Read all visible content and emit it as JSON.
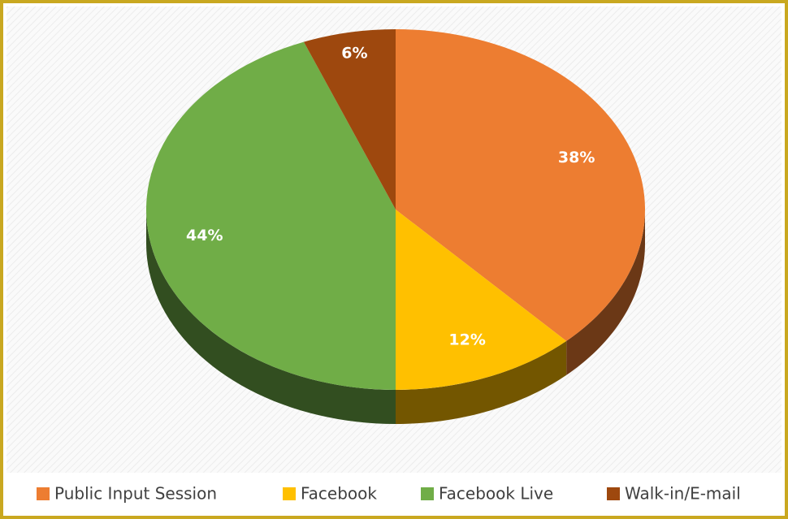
{
  "chart_data": {
    "type": "pie",
    "categories": [
      "Public Input Session",
      "Facebook",
      "Facebook Live",
      "Walk-in/E-mail"
    ],
    "values": [
      38,
      12,
      44,
      6
    ],
    "value_labels": [
      "38%",
      "12%",
      "44%",
      "6%"
    ],
    "colors": [
      "#ED7D31",
      "#FFC000",
      "#70AD47",
      "#9E480E"
    ],
    "legend": "bottom"
  }
}
